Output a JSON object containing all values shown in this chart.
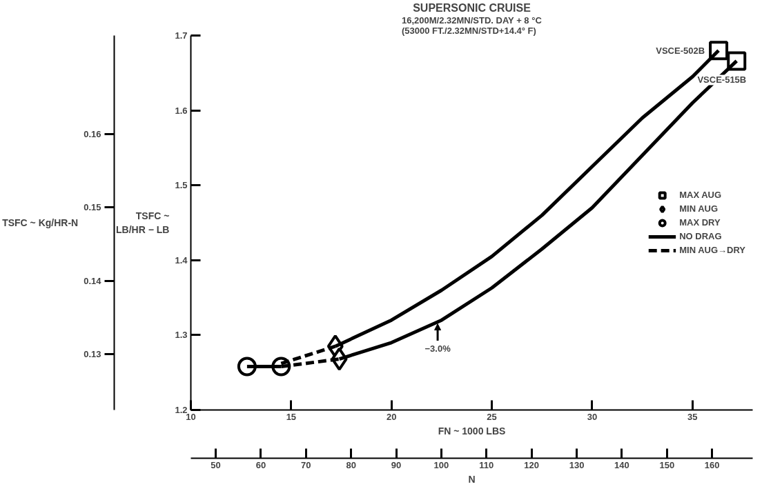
{
  "chart_data": {
    "type": "line",
    "title": "SUPERSONIC CRUISE",
    "subtitle": "16,200M/2.32MN/STD. DAY + 8 °C\n(53000 FT./2.32MN/STD+14.4° F)",
    "xlabel": "FN ~ 1000 LBS",
    "ylabel": "TSFC ~\nLB/HR − LB",
    "y2label": "TSFC ~ Kg/HR-N",
    "x2label": "N",
    "xlim": [
      10,
      38
    ],
    "xticks": [
      10,
      15,
      20,
      25,
      30,
      35
    ],
    "ylim": [
      1.2,
      1.7
    ],
    "yticks": [
      1.2,
      1.3,
      1.4,
      1.5,
      1.6,
      1.7
    ],
    "y2lim": [
      0.1224,
      0.1734
    ],
    "y2ticks": [
      0.13,
      0.14,
      0.15,
      0.16
    ],
    "x2lim": [
      44.48,
      169.0
    ],
    "x2ticks": [
      50,
      60,
      70,
      80,
      90,
      100,
      110,
      120,
      130,
      140,
      150,
      160
    ],
    "grid": false,
    "legend": "right",
    "series": [
      {
        "name": "MAX AUG",
        "type": "scatter",
        "marker": "square",
        "color": "#000000",
        "x": [
          36.3,
          37.2
        ],
        "values": [
          1.68,
          1.666
        ]
      },
      {
        "name": "MIN AUG",
        "type": "scatter",
        "marker": "diamond",
        "color": "#000000",
        "x": [
          17.2,
          17.4
        ],
        "values": [
          1.285,
          1.268
        ]
      },
      {
        "name": "MAX DRY",
        "type": "scatter",
        "marker": "circle",
        "color": "#000000",
        "x": [
          12.8,
          14.5
        ],
        "values": [
          1.258,
          1.258
        ]
      },
      {
        "name": "NO DRAG",
        "line_style": "solid",
        "color": "#000000",
        "x": [
          17.2,
          20,
          22.5,
          25,
          27.5,
          30,
          32.5,
          35,
          36.3
        ],
        "values": [
          1.285,
          1.32,
          1.36,
          1.405,
          1.46,
          1.525,
          1.59,
          1.645,
          1.68
        ]
      },
      {
        "line_style": "solid",
        "color": "#000000",
        "x": [
          17.4,
          20,
          22.5,
          25,
          27.5,
          30,
          32.5,
          35,
          37.2
        ],
        "values": [
          1.268,
          1.29,
          1.32,
          1.363,
          1.415,
          1.47,
          1.54,
          1.61,
          1.666
        ]
      },
      {
        "type": "line",
        "line_style": "solid",
        "color": "#000000",
        "x": [
          12.8,
          14.5
        ],
        "values": [
          1.258,
          1.258
        ]
      },
      {
        "name": "MIN AUG→DRY",
        "type": "line",
        "line_style": "dashed",
        "color": "#000000",
        "x": [
          14.5,
          17.2
        ],
        "values": [
          1.262,
          1.285
        ]
      },
      {
        "type": "line",
        "line_style": "dashed",
        "color": "#000000",
        "x": [
          14.5,
          17.4
        ],
        "values": [
          1.258,
          1.268
        ]
      }
    ],
    "annotations": [
      {
        "text": "VSCE-502B",
        "x": 36.3,
        "y": 1.68
      },
      {
        "text": "VSCE-515B",
        "x": 37.2,
        "y": 1.666
      },
      {
        "text": "−3.0%",
        "x": 22.3,
        "y": 1.32
      }
    ]
  }
}
